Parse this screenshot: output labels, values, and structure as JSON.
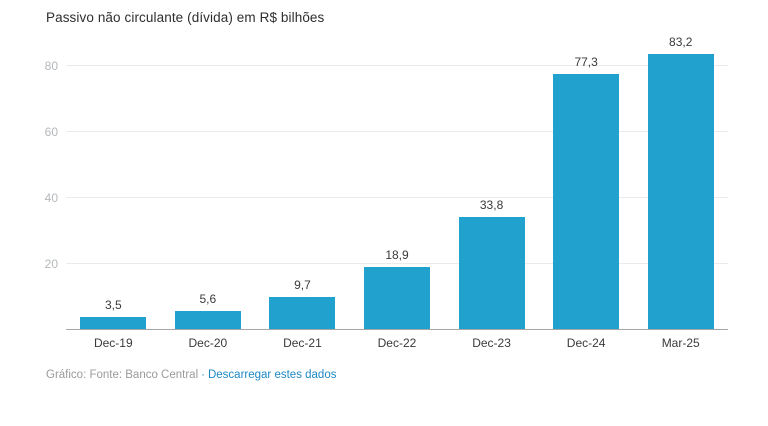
{
  "header": {
    "title": "Passivo não circulante (dívida) em R$ bilhões"
  },
  "chart_data": {
    "type": "bar",
    "title": "Passivo não circulante (dívida) em R$ bilhões",
    "categories": [
      "Dec-19",
      "Dec-20",
      "Dec-21",
      "Dec-22",
      "Dec-23",
      "Dec-24",
      "Mar-25"
    ],
    "values": [
      3.5,
      5.6,
      9.7,
      18.9,
      33.8,
      77.3,
      83.2
    ],
    "value_labels": [
      "3,5",
      "5,6",
      "9,7",
      "18,9",
      "33,8",
      "77,3",
      "83,2"
    ],
    "xlabel": "",
    "ylabel": "",
    "ylim": [
      0,
      88
    ],
    "yticks": [
      20,
      40,
      60,
      80
    ],
    "grid": true,
    "legend": false,
    "bar_color": "#21a1ce"
  },
  "colors": {
    "bar": "#21a1ce",
    "gridline": "#ebebeb",
    "axis_line": "#a6a6a6",
    "tick_label": "#b4b8ba",
    "text": "#3a3a3a",
    "footer_text": "#9b9b9b",
    "link": "#1e88c5"
  },
  "footer": {
    "attribution": "Gráfico: Fonte: Banco Central",
    "separator": "·",
    "link_label": "Descarregar estes dados"
  }
}
